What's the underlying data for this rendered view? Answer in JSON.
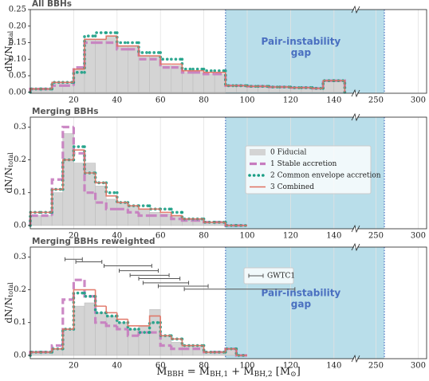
{
  "chart_data": [
    {
      "type": "histogram",
      "title": "All BBHs",
      "ylabel": [
        "dN/N",
        "total"
      ],
      "bins": [
        0,
        5,
        10,
        15,
        20,
        25,
        30,
        35,
        40,
        45,
        50,
        55,
        60,
        65,
        70,
        75,
        80,
        85,
        90,
        95,
        100,
        105,
        110,
        115,
        120,
        125,
        130,
        135,
        140,
        145
      ],
      "series": [
        {
          "color": "#d4d4d4",
          "style": "fill",
          "values": [
            0.01,
            0.01,
            0.03,
            0.03,
            0.07,
            0.16,
            0.16,
            0.17,
            0.14,
            0.14,
            0.11,
            0.11,
            0.08,
            0.08,
            0.06,
            0.06,
            0.055,
            0.055,
            0.02,
            0.02,
            0.018,
            0.018,
            0.016,
            0.016,
            0.014,
            0.014,
            0.012,
            0.035,
            0.035
          ]
        },
        {
          "color": "#c77cbf",
          "style": "dashed",
          "values": [
            0.01,
            0.01,
            0.02,
            0.02,
            0.075,
            0.15,
            0.15,
            0.15,
            0.13,
            0.13,
            0.1,
            0.1,
            0.075,
            0.075,
            0.06,
            0.06,
            0.055,
            0.055,
            0.02,
            0.02,
            0.018,
            0.018,
            0.016,
            0.016,
            0.014,
            0.014,
            0.012,
            0.035,
            0.035
          ]
        },
        {
          "color": "#1a9e85",
          "style": "dotted",
          "values": [
            0.01,
            0.01,
            0.03,
            0.03,
            0.06,
            0.17,
            0.18,
            0.18,
            0.15,
            0.15,
            0.12,
            0.12,
            0.1,
            0.1,
            0.07,
            0.07,
            0.065,
            0.065,
            0.02,
            0.02,
            0.018,
            0.018,
            0.016,
            0.016,
            0.014,
            0.014,
            0.012,
            0.035,
            0.035
          ]
        },
        {
          "color": "#e07060",
          "style": "solid",
          "values": [
            0.01,
            0.01,
            0.03,
            0.03,
            0.07,
            0.16,
            0.16,
            0.17,
            0.14,
            0.14,
            0.11,
            0.11,
            0.085,
            0.085,
            0.065,
            0.065,
            0.06,
            0.06,
            0.02,
            0.02,
            0.018,
            0.018,
            0.016,
            0.016,
            0.014,
            0.014,
            0.012,
            0.035,
            0.035
          ]
        }
      ],
      "xlim": [
        0,
        310
      ],
      "xbreak": [
        150,
        226
      ],
      "xticks": [
        20,
        40,
        60,
        80,
        100,
        120,
        140,
        250,
        300
      ],
      "ylim": [
        -0.003,
        0.25
      ],
      "yticks": [
        {
          "value": 0,
          "label": "0.00"
        },
        {
          "value": 0.05,
          "label": "0.05"
        },
        {
          "value": 0.1,
          "label": "0.10"
        },
        {
          "value": 0.15,
          "label": "0.15"
        },
        {
          "value": 0.2,
          "label": "0.20"
        },
        {
          "value": 0.25,
          "label": "0.25"
        }
      ],
      "grid": true,
      "region": {
        "x": [
          90,
          260
        ],
        "label": [
          "Pair-instability",
          "gap"
        ]
      }
    },
    {
      "type": "histogram",
      "title": "Merging BBHs",
      "ylabel": [
        "dN/N",
        "total"
      ],
      "bins": [
        0,
        5,
        10,
        15,
        20,
        25,
        30,
        35,
        40,
        45,
        50,
        55,
        60,
        65,
        70,
        75,
        80,
        85,
        90,
        95,
        100
      ],
      "series": [
        {
          "name": "0 Fiducial",
          "color": "#d4d4d4",
          "style": "fill",
          "values": [
            0.03,
            0.03,
            0.1,
            0.28,
            0.19,
            0.19,
            0.12,
            0.08,
            0.07,
            0.06,
            0.05,
            0.04,
            0.035,
            0.03,
            0.02,
            0.02,
            0.01,
            0.01,
            0,
            0
          ]
        },
        {
          "name": "1 Stable accretion",
          "color": "#c77cbf",
          "style": "dashed",
          "values": [
            0.03,
            0.03,
            0.14,
            0.3,
            0.22,
            0.1,
            0.07,
            0.05,
            0.05,
            0.04,
            0.03,
            0.03,
            0.03,
            0.02,
            0.015,
            0.015,
            0.01,
            0.01,
            0,
            0
          ]
        },
        {
          "name": "2 Common envelope accretion",
          "color": "#1a9e85",
          "style": "dotted",
          "values": [
            0.04,
            0.04,
            0.11,
            0.2,
            0.24,
            0.16,
            0.13,
            0.1,
            0.07,
            0.06,
            0.06,
            0.05,
            0.05,
            0.04,
            0.02,
            0.02,
            0.01,
            0.01,
            0,
            0
          ]
        },
        {
          "name": "3 Combined",
          "color": "#e07060",
          "style": "solid",
          "values": [
            0.04,
            0.04,
            0.11,
            0.2,
            0.23,
            0.16,
            0.13,
            0.09,
            0.07,
            0.06,
            0.05,
            0.05,
            0.04,
            0.03,
            0.02,
            0.02,
            0.01,
            0.01,
            0,
            0
          ]
        }
      ],
      "xlim": [
        0,
        310
      ],
      "xbreak": [
        150,
        226
      ],
      "xticks": [
        20,
        40,
        60,
        80,
        100,
        120,
        140,
        250,
        300
      ],
      "ylim": [
        -0.01,
        0.33
      ],
      "yticks": [
        {
          "value": 0,
          "label": "0.0"
        },
        0.1,
        0.2,
        0.3
      ],
      "grid": true,
      "legend": "center right",
      "region": {
        "x": [
          90,
          260
        ]
      }
    },
    {
      "type": "histogram",
      "title": "Merging BBHs reweighted",
      "ylabel": [
        "dN/N",
        "total"
      ],
      "xlabel": [
        "M",
        "BBH",
        " = M",
        "BH,1",
        " + M",
        "BH,2",
        " [M",
        "⊙",
        "]"
      ],
      "bins": [
        0,
        5,
        10,
        15,
        20,
        25,
        30,
        35,
        40,
        45,
        50,
        55,
        60,
        65,
        70,
        75,
        80,
        85,
        90,
        95,
        100
      ],
      "series": [
        {
          "color": "#d4d4d4",
          "style": "fill",
          "values": [
            0.01,
            0.01,
            0.02,
            0.08,
            0.15,
            0.16,
            0.13,
            0.12,
            0.1,
            0.08,
            0.09,
            0.14,
            0.06,
            0.04,
            0.03,
            0.03,
            0.01,
            0.01,
            0.02,
            0
          ]
        },
        {
          "color": "#c77cbf",
          "style": "dashed",
          "values": [
            0.01,
            0.01,
            0.03,
            0.17,
            0.23,
            0.18,
            0.1,
            0.09,
            0.08,
            0.06,
            0.07,
            0.07,
            0.03,
            0.02,
            0.02,
            0.02,
            0.01,
            0.01,
            0.02,
            0
          ]
        },
        {
          "color": "#1a9e85",
          "style": "dotted",
          "values": [
            0.01,
            0.01,
            0.02,
            0.08,
            0.19,
            0.18,
            0.13,
            0.12,
            0.1,
            0.08,
            0.07,
            0.1,
            0.06,
            0.05,
            0.03,
            0.03,
            0.01,
            0.01,
            0.02,
            0
          ]
        },
        {
          "color": "#e07060",
          "style": "solid",
          "values": [
            0.01,
            0.01,
            0.02,
            0.08,
            0.2,
            0.2,
            0.15,
            0.13,
            0.11,
            0.09,
            0.09,
            0.12,
            0.06,
            0.05,
            0.03,
            0.03,
            0.01,
            0.01,
            0.02,
            0
          ]
        }
      ],
      "errorbars": {
        "name": "GWTC1",
        "color": "#555555",
        "low": [
          16,
          21,
          34,
          41,
          46,
          50,
          52,
          59,
          71
        ],
        "high": [
          24,
          33,
          56,
          59,
          64,
          69,
          73,
          82,
          122
        ],
        "y": [
          0.293,
          0.285,
          0.273,
          0.258,
          0.244,
          0.234,
          0.221,
          0.211,
          0.202
        ]
      },
      "xlim": [
        0,
        310
      ],
      "xbreak": [
        150,
        226
      ],
      "xticks": [
        20,
        40,
        60,
        80,
        100,
        120,
        140,
        250,
        300
      ],
      "ylim": [
        -0.01,
        0.33
      ],
      "yticks": [
        {
          "value": 0,
          "label": "0.0"
        },
        0.1,
        0.2,
        0.3
      ],
      "grid": true,
      "region": {
        "x": [
          90,
          260
        ],
        "label": [
          "Pair-instability",
          "gap"
        ]
      }
    }
  ]
}
